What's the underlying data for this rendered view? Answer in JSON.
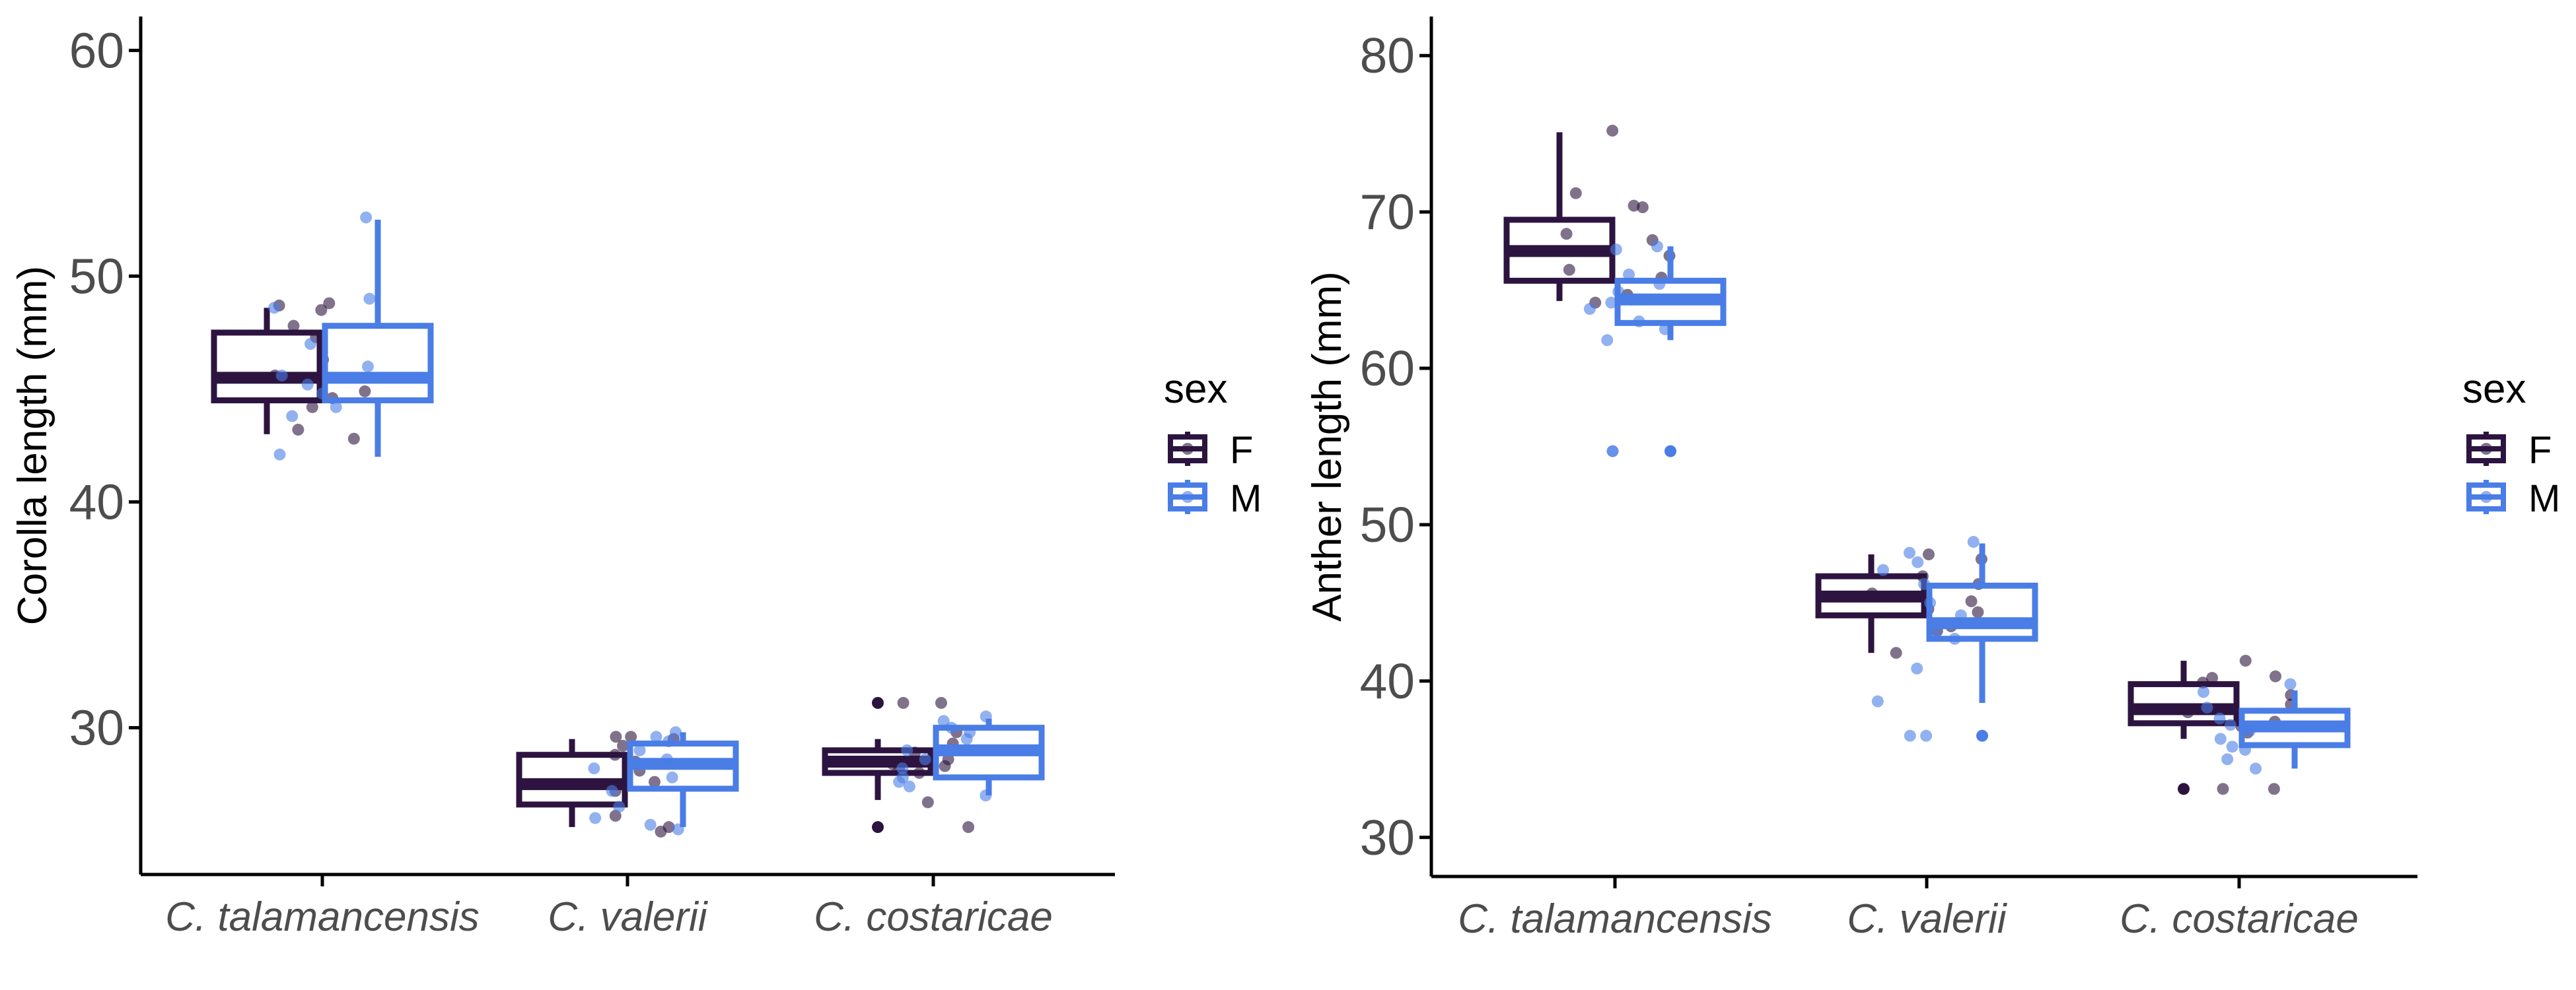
{
  "colors": {
    "F": "#2d1440",
    "M": "#4a7de6",
    "axis": "#000000"
  },
  "legend": {
    "title": "sex",
    "entries": [
      {
        "key": "F",
        "label": "F"
      },
      {
        "key": "M",
        "label": "M"
      }
    ]
  },
  "chart_data": [
    {
      "type": "box",
      "ylabel": "Corolla length (mm)",
      "xlabel": "",
      "ylim": [
        23.5,
        61.5
      ],
      "yticks": [
        30,
        40,
        50,
        60
      ],
      "categories": [
        "C. talamancensis",
        "C. valerii",
        "C. costaricae"
      ],
      "series": [
        {
          "name": "F",
          "boxes": [
            {
              "min": 43.0,
              "q1": 44.5,
              "median": 45.5,
              "q3": 47.5,
              "max": 48.6,
              "outliers": []
            },
            {
              "min": 25.6,
              "q1": 26.6,
              "median": 27.5,
              "q3": 28.8,
              "max": 29.5,
              "outliers": []
            },
            {
              "min": 26.8,
              "q1": 28.0,
              "median": 28.5,
              "q3": 29.0,
              "max": 29.5,
              "outliers": [
                25.6,
                31.1
              ]
            }
          ],
          "points": [
            [
              48.5,
              48.8,
              48.7,
              47.8,
              47.3,
              46.3,
              45.6,
              44.9,
              44.6,
              44.2,
              43.2,
              42.8
            ],
            [
              29.6,
              29.6,
              29.5,
              29.2,
              28.8,
              28.5,
              28.1,
              27.6,
              27.2,
              26.1,
              25.6,
              25.4
            ],
            [
              31.1,
              31.1,
              29.8,
              29.3,
              28.9,
              28.6,
              28.4,
              28.3,
              28.2,
              28.0,
              26.7,
              25.6
            ]
          ]
        },
        {
          "name": "M",
          "boxes": [
            {
              "min": 42.0,
              "q1": 44.5,
              "median": 45.5,
              "q3": 47.8,
              "max": 52.5,
              "outliers": []
            },
            {
              "min": 25.6,
              "q1": 27.3,
              "median": 28.4,
              "q3": 29.3,
              "max": 29.8,
              "outliers": []
            },
            {
              "min": 27.0,
              "q1": 27.8,
              "median": 29.0,
              "q3": 30.0,
              "max": 30.4,
              "outliers": []
            }
          ],
          "points": [
            [
              52.6,
              49.0,
              48.6,
              47.0,
              46.0,
              45.6,
              45.2,
              44.8,
              44.2,
              43.8,
              42.1
            ],
            [
              29.8,
              29.6,
              29.4,
              29.0,
              28.6,
              28.2,
              27.8,
              27.2,
              26.5,
              26.0,
              25.7,
              25.5
            ],
            [
              30.5,
              30.3,
              30.0,
              29.8,
              29.5,
              29.0,
              28.6,
              28.2,
              27.8,
              27.6,
              27.4,
              27.0
            ]
          ]
        }
      ]
    },
    {
      "type": "box",
      "ylabel": "Anther length (mm)",
      "xlabel": "",
      "ylim": [
        27.5,
        82.5
      ],
      "yticks": [
        30,
        40,
        50,
        60,
        70,
        80
      ],
      "categories": [
        "C. talamancensis",
        "C. valerii",
        "C. costaricae"
      ],
      "series": [
        {
          "name": "F",
          "boxes": [
            {
              "min": 64.3,
              "q1": 65.6,
              "median": 67.5,
              "q3": 69.5,
              "max": 75.1,
              "outliers": []
            },
            {
              "min": 41.8,
              "q1": 44.2,
              "median": 45.4,
              "q3": 46.7,
              "max": 48.1,
              "outliers": []
            },
            {
              "min": 36.3,
              "q1": 37.3,
              "median": 38.2,
              "q3": 39.8,
              "max": 41.3,
              "outliers": [
                33.1
              ]
            }
          ],
          "points": [
            [
              75.2,
              71.2,
              70.4,
              70.3,
              68.6,
              68.2,
              67.2,
              66.3,
              65.8,
              64.7,
              64.4,
              64.2
            ],
            [
              48.1,
              47.8,
              46.7,
              46.2,
              45.6,
              45.1,
              44.6,
              44.4,
              43.5,
              43.2,
              41.8
            ],
            [
              41.3,
              40.3,
              40.2,
              39.9,
              39.1,
              38.5,
              38.0,
              37.4,
              37.1,
              36.7,
              33.1,
              33.1
            ]
          ]
        },
        {
          "name": "M",
          "boxes": [
            {
              "min": 61.8,
              "q1": 62.9,
              "median": 64.4,
              "q3": 65.6,
              "max": 67.8,
              "outliers": [
                54.7
              ]
            },
            {
              "min": 38.6,
              "q1": 42.7,
              "median": 43.7,
              "q3": 46.1,
              "max": 48.8,
              "outliers": [
                36.5
              ]
            },
            {
              "min": 34.4,
              "q1": 35.9,
              "median": 37.1,
              "q3": 38.1,
              "max": 39.4,
              "outliers": []
            }
          ],
          "points": [
            [
              67.8,
              67.6,
              66.0,
              65.4,
              64.9,
              64.2,
              63.8,
              63.0,
              62.5,
              61.8,
              54.7,
              54.7
            ],
            [
              48.9,
              48.2,
              47.6,
              47.1,
              46.2,
              45.0,
              44.2,
              43.0,
              42.7,
              40.8,
              38.7,
              36.5,
              36.5
            ],
            [
              39.8,
              39.3,
              38.3,
              37.6,
              37.2,
              36.8,
              36.3,
              35.8,
              35.6,
              35.0,
              34.4
            ]
          ]
        }
      ]
    }
  ]
}
